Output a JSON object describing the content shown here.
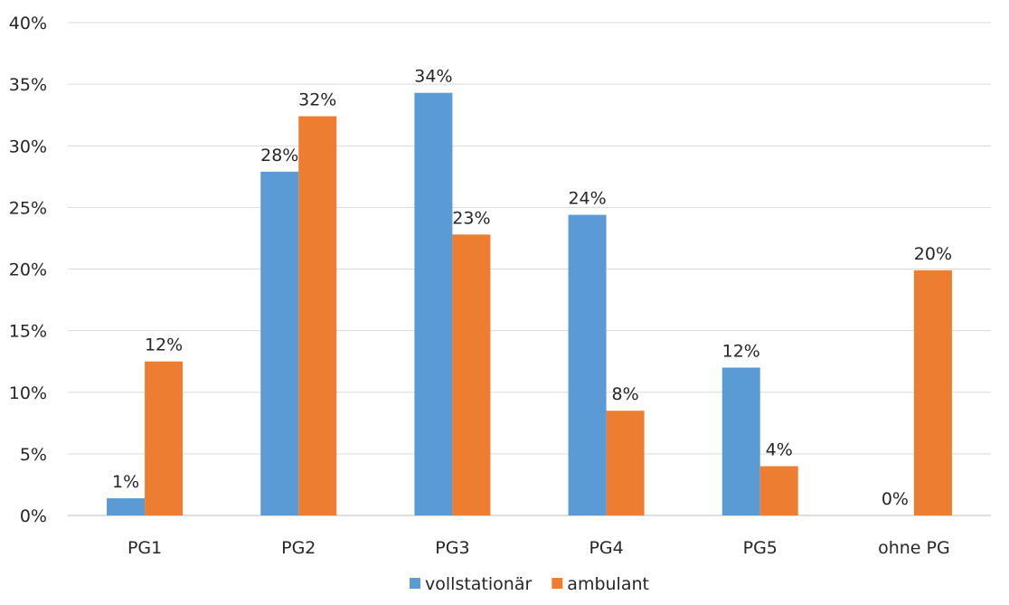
{
  "chart_data": {
    "type": "bar",
    "title": "",
    "xlabel": "",
    "ylabel": "",
    "categories": [
      "PG1",
      "PG2",
      "PG3",
      "PG4",
      "PG5",
      "ohne PG"
    ],
    "series": [
      {
        "name": "vollstationär",
        "color": "#5B9BD5",
        "values": [
          0.014,
          0.279,
          0.343,
          0.244,
          0.12,
          0.0
        ],
        "labels": [
          "1%",
          "28%",
          "34%",
          "24%",
          "12%",
          "0%"
        ]
      },
      {
        "name": "ambulant",
        "color": "#ED7D31",
        "values": [
          0.125,
          0.324,
          0.228,
          0.085,
          0.04,
          0.199
        ],
        "labels": [
          "12%",
          "32%",
          "23%",
          "8%",
          "4%",
          "20%"
        ]
      }
    ],
    "ylim": [
      0,
      0.4
    ],
    "yticks": [
      0,
      0.05,
      0.1,
      0.15,
      0.2,
      0.25,
      0.3,
      0.35,
      0.4
    ],
    "ytick_labels": [
      "0%",
      "5%",
      "10%",
      "15%",
      "20%",
      "25%",
      "30%",
      "35%",
      "40%"
    ],
    "grid": true,
    "legend_position": "bottom"
  }
}
